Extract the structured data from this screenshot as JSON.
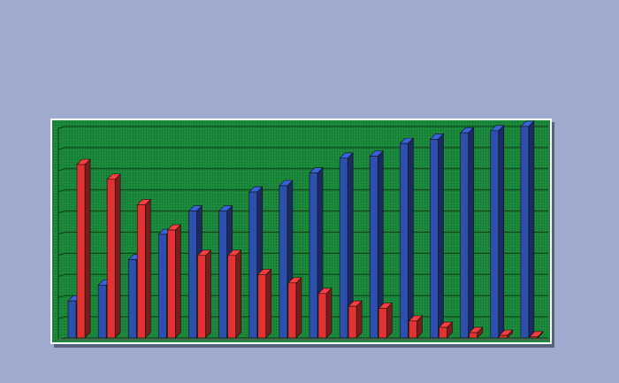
{
  "chart_data": {
    "type": "bar3d",
    "categories": [
      null,
      null,
      null,
      null,
      null,
      null,
      null,
      null,
      null,
      null,
      null,
      null,
      null,
      null,
      null,
      null
    ],
    "series": [
      {
        "color": "#2d4fae",
        "values": [
          1.75,
          2.5,
          3.7,
          4.9,
          6.0,
          6.0,
          6.9,
          7.2,
          7.8,
          8.5,
          8.6,
          9.2,
          9.4,
          9.7,
          9.8,
          10.0
        ]
      },
      {
        "color": "#e23232",
        "values": [
          8.2,
          7.5,
          6.3,
          5.1,
          3.9,
          3.9,
          3.0,
          2.6,
          2.1,
          1.5,
          1.4,
          0.8,
          0.5,
          0.25,
          0.12,
          0.05
        ]
      }
    ],
    "ylim": [
      0,
      10
    ],
    "yticks": [
      0,
      1,
      2,
      3,
      4,
      5,
      6,
      7,
      8,
      9,
      10
    ],
    "grid": true,
    "background": "#1c8a3c"
  }
}
